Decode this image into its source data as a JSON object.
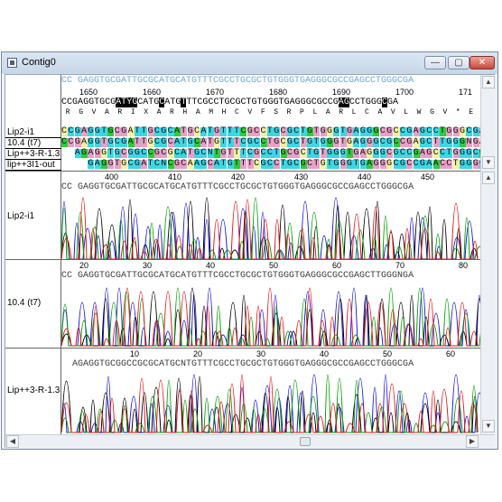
{
  "window": {
    "title": "Contig0",
    "minimize_glyph": "—",
    "maximize_glyph": "▢",
    "close_glyph": "✕"
  },
  "alignment": {
    "consensus_top": "CC GAGGTGCGATTGCGCATGCATGTTTCGCCTGCGCTGTGGGTGAGGGCGCCGAGCCTGGGCGA",
    "ruler_ticks": [
      "1650",
      "1660",
      "1670",
      "1680",
      "1690",
      "1700",
      "171"
    ],
    "reference_seq": "CCGAGGTGCGATYGCATGCATGTTTCGCCTGCGCTGTGGGTGAGGGCGCCGAGCCTGGGCGA",
    "translation_upper": " R  G  V  A  R  I  X  A  R  H  A  M  H  C  V  F  S  R  P  L  A  R  L  C  A  V  L  W  G  V  *  E  R  G  A  R  P  S  R  P  A  L  W  G  A  R  D",
    "reads": [
      {
        "name": "Lip2-i1",
        "seq": "CCGAGGTGCGATTGCGCATGCATGTTTCGCCTGCGCTGTGGGTGAGGGCGCCGAGCCTGGGCGA"
      },
      {
        "name": "10.4 (t7)",
        "seq": "CCGAGGTGCGATTGCGCATGCATGTTTCGCCTGCGCTGTGGGTGAGGGCGCCGAGCTTGGGNGA"
      },
      {
        "name": "Lip++3-R-1.3",
        "seq": "  AGAGGTGCGGCCGCGCATGCNTGTTTCGCCTGCGCTGTGGGTGAGGGCGCCGAGCCTGGGCGA"
      },
      {
        "name": "lip++3I1-out",
        "seq": "    GAGGTGCGATCNCGCAAGCATGTTTCGCCTGCGCTGTGGGTGAGGGCGCCGAACCTGGGCGA"
      }
    ],
    "read_ruler_ticks": [
      "400",
      "410",
      "420",
      "430",
      "440",
      "450"
    ]
  },
  "traces": [
    {
      "name": "Lip2-i1",
      "seq": "CC GAGGTGCGATTGCGCATGCATGTTTCGCCTGCGCTGTGGGTGAGGGCGCCGAGCCTGGGCGA",
      "ticks": []
    },
    {
      "name": "10.4 (t7)",
      "seq": "CC GAGGTGCGATTGCGCATGCATGTTTCGCCTGCGCTGTGGGTGAGGGCGCCGAGCTTGGGNGA",
      "ticks": [
        "20",
        "30",
        "40",
        "50",
        "60",
        "70",
        "80"
      ]
    },
    {
      "name": "Lip++3-R-1.3",
      "seq": "  AGAGGTGCGGCCGCGCATGCNTGTTTCGCCTGCGCTGTGGGTGAGGGCGCCGAGCCTGGGCGA",
      "ticks": [
        "10",
        "20",
        "30",
        "40",
        "50",
        "60"
      ]
    }
  ],
  "base_colors": {
    "A": "#00a000",
    "C": "#1414e6",
    "G": "#000000",
    "T": "#e61414"
  },
  "highlight_colors": {
    "teal": "#3cd7e6",
    "pink": "#e8a0c8",
    "green": "#2ecc3a",
    "yellow": "#f5f0a0",
    "orange": "#f0d8a0"
  }
}
